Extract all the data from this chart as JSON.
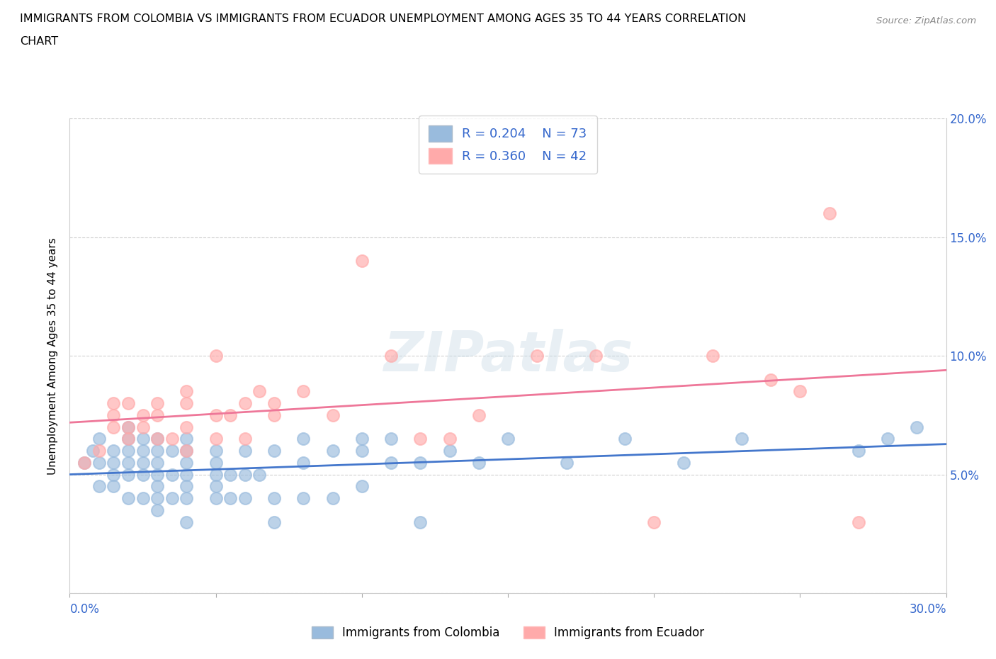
{
  "title_line1": "IMMIGRANTS FROM COLOMBIA VS IMMIGRANTS FROM ECUADOR UNEMPLOYMENT AMONG AGES 35 TO 44 YEARS CORRELATION",
  "title_line2": "CHART",
  "source": "Source: ZipAtlas.com",
  "ylabel": "Unemployment Among Ages 35 to 44 years",
  "xlabel_colombia": "Immigrants from Colombia",
  "xlabel_ecuador": "Immigrants from Ecuador",
  "xlim": [
    0.0,
    0.3
  ],
  "ylim": [
    0.0,
    0.2
  ],
  "xticks": [
    0.0,
    0.05,
    0.1,
    0.15,
    0.2,
    0.25,
    0.3
  ],
  "yticks": [
    0.05,
    0.1,
    0.15,
    0.2
  ],
  "color_colombia": "#99BBDD",
  "color_ecuador": "#FFAAAA",
  "line_color_colombia": "#4477CC",
  "line_color_ecuador": "#EE7799",
  "R_colombia": 0.204,
  "N_colombia": 73,
  "R_ecuador": 0.36,
  "N_ecuador": 42,
  "watermark": "ZIPatlas",
  "colombia_x": [
    0.005,
    0.008,
    0.01,
    0.01,
    0.01,
    0.015,
    0.015,
    0.015,
    0.015,
    0.02,
    0.02,
    0.02,
    0.02,
    0.02,
    0.02,
    0.025,
    0.025,
    0.025,
    0.025,
    0.025,
    0.03,
    0.03,
    0.03,
    0.03,
    0.03,
    0.03,
    0.03,
    0.035,
    0.035,
    0.035,
    0.04,
    0.04,
    0.04,
    0.04,
    0.04,
    0.04,
    0.04,
    0.05,
    0.05,
    0.05,
    0.05,
    0.05,
    0.055,
    0.055,
    0.06,
    0.06,
    0.06,
    0.065,
    0.07,
    0.07,
    0.07,
    0.08,
    0.08,
    0.08,
    0.09,
    0.09,
    0.1,
    0.1,
    0.1,
    0.11,
    0.11,
    0.12,
    0.12,
    0.13,
    0.14,
    0.15,
    0.17,
    0.19,
    0.21,
    0.23,
    0.27,
    0.28,
    0.29
  ],
  "colombia_y": [
    0.055,
    0.06,
    0.045,
    0.055,
    0.065,
    0.045,
    0.05,
    0.055,
    0.06,
    0.04,
    0.05,
    0.055,
    0.06,
    0.065,
    0.07,
    0.04,
    0.05,
    0.055,
    0.06,
    0.065,
    0.035,
    0.04,
    0.045,
    0.05,
    0.055,
    0.06,
    0.065,
    0.04,
    0.05,
    0.06,
    0.03,
    0.04,
    0.045,
    0.05,
    0.055,
    0.06,
    0.065,
    0.04,
    0.045,
    0.05,
    0.055,
    0.06,
    0.04,
    0.05,
    0.04,
    0.05,
    0.06,
    0.05,
    0.03,
    0.04,
    0.06,
    0.04,
    0.055,
    0.065,
    0.04,
    0.06,
    0.045,
    0.06,
    0.065,
    0.055,
    0.065,
    0.03,
    0.055,
    0.06,
    0.055,
    0.065,
    0.055,
    0.065,
    0.055,
    0.065,
    0.06,
    0.065,
    0.07
  ],
  "ecuador_x": [
    0.005,
    0.01,
    0.015,
    0.015,
    0.015,
    0.02,
    0.02,
    0.02,
    0.025,
    0.025,
    0.03,
    0.03,
    0.03,
    0.035,
    0.04,
    0.04,
    0.04,
    0.04,
    0.05,
    0.05,
    0.05,
    0.055,
    0.06,
    0.06,
    0.065,
    0.07,
    0.07,
    0.08,
    0.09,
    0.1,
    0.11,
    0.12,
    0.13,
    0.14,
    0.16,
    0.18,
    0.2,
    0.22,
    0.24,
    0.25,
    0.26,
    0.27
  ],
  "ecuador_y": [
    0.055,
    0.06,
    0.07,
    0.075,
    0.08,
    0.065,
    0.07,
    0.08,
    0.07,
    0.075,
    0.065,
    0.075,
    0.08,
    0.065,
    0.06,
    0.07,
    0.08,
    0.085,
    0.065,
    0.075,
    0.1,
    0.075,
    0.065,
    0.08,
    0.085,
    0.075,
    0.08,
    0.085,
    0.075,
    0.14,
    0.1,
    0.065,
    0.065,
    0.075,
    0.1,
    0.1,
    0.03,
    0.1,
    0.09,
    0.085,
    0.16,
    0.03
  ]
}
